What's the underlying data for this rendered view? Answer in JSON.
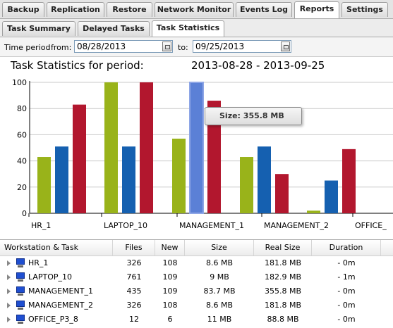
{
  "tabs": [
    "Backup",
    "Replication",
    "Restore",
    "Network Monitor",
    "Events Log",
    "Reports",
    "Settings"
  ],
  "active_tab": "Reports",
  "subtabs": [
    "Task Summary",
    "Delayed Tasks",
    "Task Statistics"
  ],
  "active_subtab": "Task Statistics",
  "filter": {
    "time_period_label": "Time period",
    "from_label": "from:",
    "from_value": "08/28/2013",
    "to_label": "to:",
    "to_value": "09/25/2013"
  },
  "report": {
    "title": "Task Statistics for period:",
    "period": "2013-08-28 - 2013-09-25"
  },
  "tooltip": "Size: 355.8 MB",
  "colors": {
    "green": "#99b31a",
    "blue": "#1560b0",
    "red": "#b2172e",
    "highlight": "#5b80d6"
  },
  "chart_data": {
    "type": "bar",
    "categories": [
      "HR_1",
      "LAPTOP_10",
      "MANAGEMENT_1",
      "MANAGEMENT_2",
      "OFFICE_"
    ],
    "series": [
      {
        "values": [
          43,
          100,
          57,
          43,
          2
        ]
      },
      {
        "values": [
          51,
          51,
          100,
          51,
          25
        ]
      },
      {
        "values": [
          83,
          100,
          86,
          30,
          49
        ]
      }
    ],
    "highlighted": {
      "category": "MANAGEMENT_1",
      "series_index": 1
    },
    "ylim": [
      0,
      100
    ],
    "yticks": [
      0,
      20,
      40,
      60,
      80,
      100
    ],
    "grid": true
  },
  "table": {
    "headers": [
      "Workstation & Task",
      "Files",
      "New",
      "Size",
      "Real Size",
      "Duration"
    ],
    "rows": [
      {
        "name": "HR_1",
        "files": "326",
        "new": "108",
        "size": "8.6 MB",
        "real_size": "181.8 MB",
        "duration": "- 0m"
      },
      {
        "name": "LAPTOP_10",
        "files": "761",
        "new": "109",
        "size": "9 MB",
        "real_size": "182.9 MB",
        "duration": "- 1m"
      },
      {
        "name": "MANAGEMENT_1",
        "files": "435",
        "new": "109",
        "size": "83.7 MB",
        "real_size": "355.8 MB",
        "duration": "- 0m"
      },
      {
        "name": "MANAGEMENT_2",
        "files": "326",
        "new": "108",
        "size": "8.6 MB",
        "real_size": "181.8 MB",
        "duration": "- 0m"
      },
      {
        "name": "OFFICE_P3_8",
        "files": "12",
        "new": "6",
        "size": "11 MB",
        "real_size": "88.8 MB",
        "duration": "- 0m"
      }
    ]
  }
}
